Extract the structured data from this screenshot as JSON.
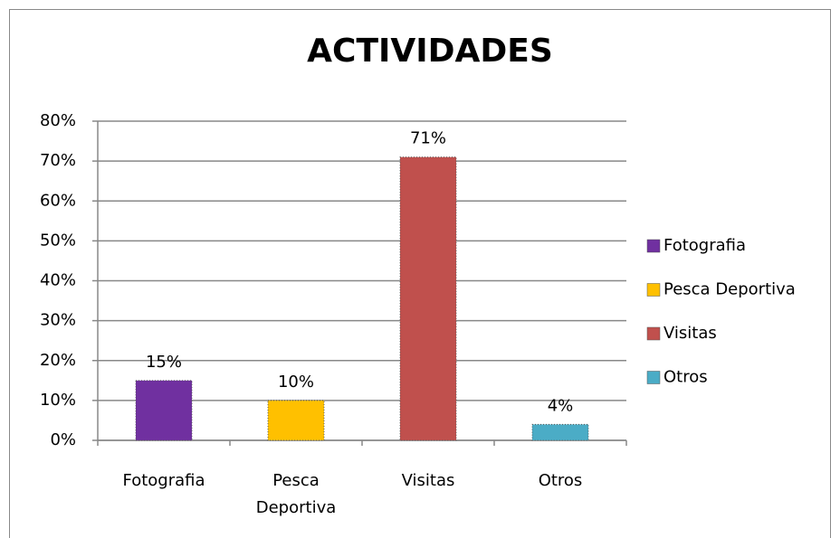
{
  "chart_data": {
    "type": "bar",
    "title": "ACTIVIDADES",
    "categories": [
      "Fotografia",
      "Pesca Deportiva",
      "Visitas",
      "Otros"
    ],
    "values": [
      15,
      10,
      71,
      4
    ],
    "value_labels": [
      "15%",
      "10%",
      "71%",
      "4%"
    ],
    "colors": [
      "#7030a0",
      "#ffc000",
      "#c0504d",
      "#4bacc6"
    ],
    "ylim": [
      0,
      80
    ],
    "yticks": [
      {
        "value": 0,
        "label": "0%"
      },
      {
        "value": 10,
        "label": "10%"
      },
      {
        "value": 20,
        "label": "20%"
      },
      {
        "value": 30,
        "label": "30%"
      },
      {
        "value": 40,
        "label": "40%"
      },
      {
        "value": 50,
        "label": "50%"
      },
      {
        "value": 60,
        "label": "60%"
      },
      {
        "value": 70,
        "label": "70%"
      },
      {
        "value": 80,
        "label": "80%"
      }
    ],
    "grid": true,
    "legend": "right"
  }
}
